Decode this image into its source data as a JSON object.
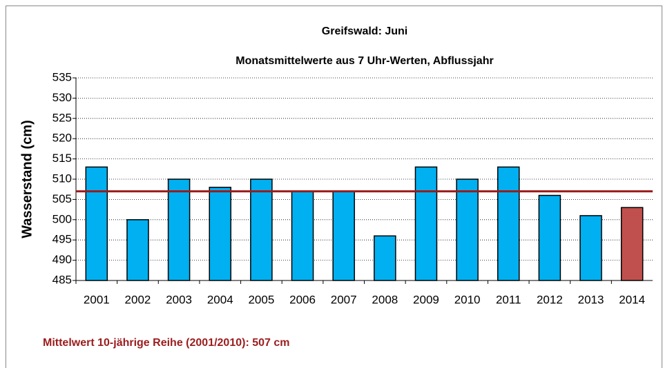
{
  "chart_data": {
    "type": "bar",
    "title": "Greifswald: Juni",
    "subtitle": "Monatsmittelwerte aus 7 Uhr-Werten, Abflussjahr",
    "y_label": "Wasserstand (cm)",
    "annotation": "Mittelwert 10-jährige Reihe (2001/2010): 507 cm",
    "categories": [
      "2001",
      "2002",
      "2003",
      "2004",
      "2005",
      "2006",
      "2007",
      "2008",
      "2009",
      "2010",
      "2011",
      "2012",
      "2013",
      "2014"
    ],
    "values": [
      513,
      500,
      510,
      508,
      510,
      507,
      507,
      496,
      513,
      510,
      513,
      506,
      501,
      503
    ],
    "colors": [
      "#00b0f0",
      "#00b0f0",
      "#00b0f0",
      "#00b0f0",
      "#00b0f0",
      "#00b0f0",
      "#00b0f0",
      "#00b0f0",
      "#00b0f0",
      "#00b0f0",
      "#00b0f0",
      "#00b0f0",
      "#00b0f0",
      "#c0504d"
    ],
    "reference_line": {
      "value": 507,
      "color": "#9b1c1c"
    },
    "ylim": [
      485,
      535
    ],
    "yticks": [
      485,
      490,
      495,
      500,
      505,
      510,
      515,
      520,
      525,
      530,
      535
    ],
    "grid": true
  }
}
